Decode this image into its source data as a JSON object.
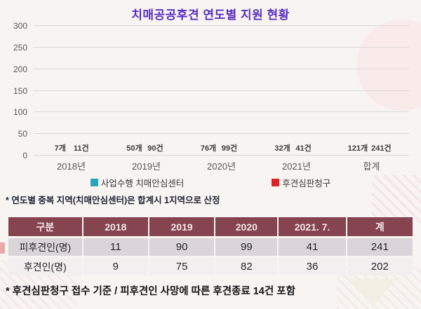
{
  "title": "치매공공후견 연도별 지원 현황",
  "chart_data": {
    "type": "bar",
    "title": "치매공공후견 연도별 지원 현황",
    "categories": [
      "2018년",
      "2019년",
      "2020년",
      "2021년",
      "합계"
    ],
    "series": [
      {
        "name": "사업수행 치매안심센터",
        "color": "#2aa2c0",
        "values": [
          7,
          50,
          76,
          32,
          121
        ],
        "labels": [
          "7개",
          "50개",
          "76개",
          "32개",
          "121개"
        ]
      },
      {
        "name": "후견심판청구",
        "color": "#df2025",
        "values": [
          11,
          90,
          99,
          41,
          241
        ],
        "labels": [
          "11건",
          "90건",
          "99건",
          "41건",
          "241건"
        ]
      }
    ],
    "xlabel": "",
    "ylabel": "",
    "ylim": [
      0,
      300
    ],
    "yticks": [
      0,
      50,
      100,
      150,
      200,
      250,
      300
    ],
    "grid": true,
    "legend_position": "bottom"
  },
  "notes": {
    "chart_note": "* 연도별 중복 지역(치매안심센터)은 합계시 1지역으로 산정",
    "table_note": "* 후견심판청구 접수 기준 / 피후견인 사망에 따른 후견종료 14건 포함"
  },
  "table": {
    "headers": [
      "구분",
      "2018",
      "2019",
      "2020",
      "2021. 7.",
      "계"
    ],
    "rows": [
      {
        "label": "피후견인(명)",
        "values": [
          "11",
          "90",
          "99",
          "41",
          "241"
        ]
      },
      {
        "label": "후견인(명)",
        "values": [
          "9",
          "75",
          "82",
          "36",
          "202"
        ]
      }
    ]
  },
  "colors": {
    "accent_title": "#5a2ec6",
    "bar_teal": "#2aa2c0",
    "bar_red": "#df2025",
    "table_header_bg": "#854450",
    "table_row_alt_bg": "#dbd5d9",
    "background": "#f7f4f2"
  }
}
